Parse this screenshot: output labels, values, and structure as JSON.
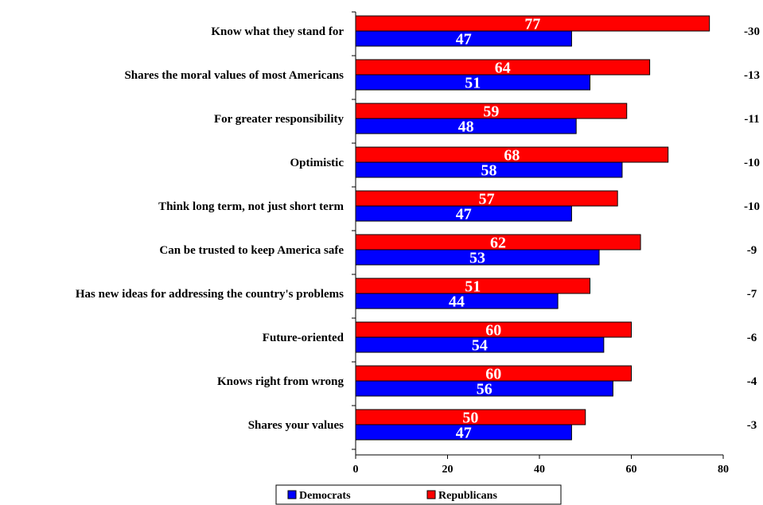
{
  "chart_data": {
    "type": "bar",
    "orientation": "horizontal",
    "categories": [
      "Know what they stand for",
      "Shares the moral values of most Americans",
      "For greater responsibility",
      "Optimistic",
      "Think long term, not just short term",
      "Can be trusted to keep America safe",
      "Has new ideas for addressing the country's problems",
      "Future-oriented",
      "Knows right from wrong",
      "Shares your values"
    ],
    "series": [
      {
        "name": "Republicans",
        "color": "#ff0000",
        "values": [
          77,
          64,
          59,
          68,
          57,
          62,
          51,
          60,
          60,
          50
        ]
      },
      {
        "name": "Democrats",
        "color": "#0000ff",
        "values": [
          47,
          51,
          48,
          58,
          47,
          53,
          44,
          54,
          56,
          47
        ]
      }
    ],
    "differences": [
      "-30",
      "-13",
      "-11",
      "-10",
      "-10",
      "-9",
      "-7",
      "-6",
      "-4",
      "-3"
    ],
    "xlim": [
      0,
      80
    ],
    "xticks": [
      0,
      20,
      40,
      60,
      80
    ],
    "legend": {
      "placement": "bottom",
      "entries": [
        {
          "label": "Democrats",
          "color": "#0000ff"
        },
        {
          "label": "Republicans",
          "color": "#ff0000"
        }
      ]
    },
    "grid": false
  }
}
